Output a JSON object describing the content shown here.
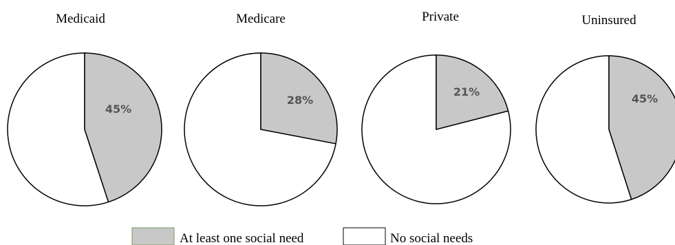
{
  "chart_data": [
    {
      "type": "pie",
      "title": "Medicaid",
      "categories": [
        "At least one social need",
        "No social needs"
      ],
      "values": [
        45,
        55
      ],
      "data_labels": [
        "45%"
      ],
      "colors": [
        "#c8c8c8",
        "#ffffff"
      ]
    },
    {
      "type": "pie",
      "title": "Medicare",
      "categories": [
        "At least one social need",
        "No social needs"
      ],
      "values": [
        28,
        72
      ],
      "data_labels": [
        "28%"
      ],
      "colors": [
        "#c8c8c8",
        "#ffffff"
      ]
    },
    {
      "type": "pie",
      "title": "Private",
      "categories": [
        "At least one social need",
        "No social needs"
      ],
      "values": [
        21,
        79
      ],
      "data_labels": [
        "21%"
      ],
      "colors": [
        "#c8c8c8",
        "#ffffff"
      ]
    },
    {
      "type": "pie",
      "title": "Uninsured",
      "categories": [
        "At least one social need",
        "No social needs"
      ],
      "values": [
        45,
        55
      ],
      "data_labels": [
        "45%"
      ],
      "colors": [
        "#c8c8c8",
        "#ffffff"
      ]
    }
  ],
  "legend": {
    "placement": "bottom-center",
    "items": [
      {
        "label": "At least one social need",
        "color": "#c8c8c8",
        "border": "#7a9a5a"
      },
      {
        "label": "No social needs",
        "color": "#ffffff",
        "border": "#000000"
      }
    ]
  },
  "colors": {
    "slice_outline": "#000000",
    "label_text": "#555555"
  }
}
